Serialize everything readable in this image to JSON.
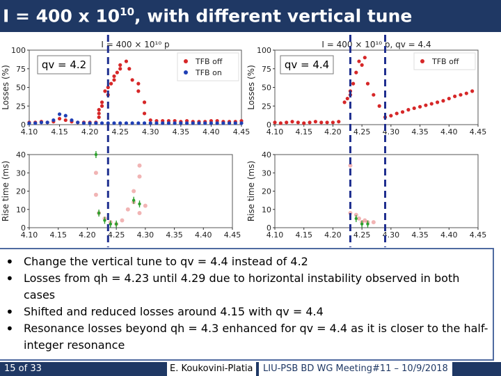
{
  "slide": {
    "title_prefix": "I = 400 x 10",
    "title_exp": "10",
    "title_suffix": ", with different vertical tune"
  },
  "bullets": [
    "Change the vertical tune to qv = 4.4 instead of 4.2",
    "Losses from qh = 4.23 until 4.29 due to horizontal instability observed in both cases",
    "Shifted and reduced losses around 4.15 with qv = 4.4",
    "Resonance losses beyond qh = 4.3 enhanced for qv = 4.4 as it is closer to the half-integer resonance"
  ],
  "footer": {
    "page": "15 of 33",
    "author": "E. Koukovini-Platia",
    "meeting": "LIU-PSB BD WG Meeting#11 – 10/9/2018"
  },
  "colors": {
    "title_bar": "#1f3864",
    "tfb_off": "#d62728",
    "tfb_on": "#1f3fb4",
    "rise_marker": "#2ca02c",
    "marker_line": "#1f2f8f"
  },
  "chart_data": [
    {
      "type": "scatter",
      "panel": "top-left",
      "title": "I = 400 × 10¹⁰ p",
      "annotation": "qv = 4.2",
      "ylabel": "Losses (%)",
      "xlabel": "",
      "xlim": [
        4.1,
        4.45
      ],
      "ylim": [
        0,
        100
      ],
      "xticks": [
        "4.10",
        "4.15",
        "4.20",
        "4.25",
        "4.30",
        "4.35",
        "4.40",
        "4.45"
      ],
      "yticks": [
        "0",
        "25",
        "50",
        "75",
        "100"
      ],
      "legend": "top-right",
      "series": [
        {
          "name": "TFB off",
          "color": "#d62728",
          "x": [
            4.1,
            4.11,
            4.12,
            4.13,
            4.14,
            4.15,
            4.16,
            4.17,
            4.18,
            4.19,
            4.2,
            4.21,
            4.215,
            4.215,
            4.215,
            4.22,
            4.22,
            4.225,
            4.23,
            4.23,
            4.235,
            4.24,
            4.24,
            4.245,
            4.25,
            4.25,
            4.26,
            4.265,
            4.27,
            4.28,
            4.28,
            4.29,
            4.29,
            4.3,
            4.31,
            4.32,
            4.33,
            4.34,
            4.35,
            4.36,
            4.37,
            4.38,
            4.39,
            4.4,
            4.41,
            4.42,
            4.43,
            4.44,
            4.45
          ],
          "y": [
            3,
            3,
            4,
            3,
            4,
            8,
            6,
            4,
            3,
            3,
            3,
            3,
            10,
            15,
            20,
            25,
            30,
            45,
            40,
            50,
            55,
            60,
            65,
            70,
            75,
            80,
            85,
            75,
            60,
            55,
            45,
            30,
            15,
            6,
            5,
            5,
            5,
            5,
            4,
            5,
            4,
            4,
            4,
            5,
            5,
            4,
            4,
            4,
            5
          ]
        },
        {
          "name": "TFB on",
          "color": "#1f3fb4",
          "x": [
            4.1,
            4.11,
            4.12,
            4.13,
            4.14,
            4.15,
            4.16,
            4.17,
            4.18,
            4.19,
            4.2,
            4.21,
            4.22,
            4.23,
            4.24,
            4.25,
            4.26,
            4.27,
            4.28,
            4.29,
            4.3,
            4.31,
            4.32,
            4.33,
            4.34,
            4.35,
            4.36,
            4.37,
            4.38,
            4.39,
            4.4,
            4.41,
            4.42,
            4.43,
            4.44,
            4.45
          ],
          "y": [
            2,
            2,
            3,
            3,
            6,
            14,
            12,
            6,
            3,
            2,
            2,
            2,
            2,
            2,
            2,
            2,
            2,
            2,
            2,
            2,
            2,
            2,
            2,
            2,
            2,
            2,
            2,
            2,
            2,
            2,
            2,
            2,
            2,
            2,
            2,
            2
          ]
        }
      ]
    },
    {
      "type": "scatter",
      "panel": "top-right",
      "title": "I = 400 × 10¹⁰ p, qv = 4.4",
      "annotation": "qv = 4.4",
      "ylabel": "Losses (%)",
      "xlabel": "",
      "xlim": [
        4.1,
        4.45
      ],
      "ylim": [
        0,
        100
      ],
      "xticks": [
        "4.10",
        "4.15",
        "4.20",
        "4.25",
        "4.30",
        "4.35",
        "4.40",
        "4.45"
      ],
      "yticks": [
        "0",
        "25",
        "50",
        "75",
        "100"
      ],
      "legend": "top-right",
      "series": [
        {
          "name": "TFB off",
          "color": "#d62728",
          "x": [
            4.1,
            4.11,
            4.12,
            4.13,
            4.14,
            4.15,
            4.16,
            4.17,
            4.18,
            4.19,
            4.2,
            4.21,
            4.22,
            4.225,
            4.23,
            4.23,
            4.235,
            4.24,
            4.245,
            4.25,
            4.255,
            4.26,
            4.27,
            4.28,
            4.29,
            4.3,
            4.31,
            4.32,
            4.33,
            4.34,
            4.35,
            4.36,
            4.37,
            4.38,
            4.39,
            4.4,
            4.41,
            4.42,
            4.43,
            4.44
          ],
          "y": [
            3,
            2,
            3,
            4,
            3,
            2,
            3,
            4,
            3,
            3,
            3,
            4,
            30,
            35,
            45,
            40,
            55,
            70,
            85,
            80,
            90,
            55,
            40,
            25,
            10,
            12,
            15,
            17,
            20,
            22,
            24,
            26,
            28,
            30,
            32,
            35,
            38,
            40,
            42,
            45
          ]
        }
      ]
    },
    {
      "type": "scatter",
      "panel": "bottom-left",
      "title": "",
      "ylabel": "Rise time (ms)",
      "xlabel": "",
      "xlim": [
        4.1,
        4.45
      ],
      "ylim": [
        0,
        40
      ],
      "xticks": [
        "4.10",
        "4.15",
        "4.20",
        "4.25",
        "4.30",
        "4.35",
        "4.40",
        "4.45"
      ],
      "yticks": [
        "0",
        "10",
        "20",
        "30",
        "40"
      ],
      "series": [
        {
          "name": "TFB off",
          "color": "#d62728",
          "x": [
            4.215,
            4.215,
            4.22,
            4.23,
            4.24,
            4.25,
            4.26,
            4.27,
            4.28,
            4.28,
            4.29,
            4.29,
            4.29,
            4.3
          ],
          "y": [
            30,
            18,
            8,
            5,
            3,
            2,
            4,
            10,
            20,
            14,
            28,
            34,
            8,
            12
          ]
        },
        {
          "name": "TFB on",
          "color": "#2ca02c",
          "x": [
            4.215,
            4.22,
            4.23,
            4.24,
            4.25,
            4.28,
            4.29
          ],
          "y": [
            40,
            8,
            4,
            2,
            2,
            15,
            13
          ]
        }
      ]
    },
    {
      "type": "scatter",
      "panel": "bottom-right",
      "title": "",
      "ylabel": "Rise time (ms)",
      "xlabel": "",
      "xlim": [
        4.1,
        4.45
      ],
      "ylim": [
        0,
        40
      ],
      "xticks": [
        "4.10",
        "4.15",
        "4.20",
        "4.25",
        "4.30",
        "4.35",
        "4.40",
        "4.45"
      ],
      "yticks": [
        "0",
        "10",
        "20",
        "30",
        "40"
      ],
      "series": [
        {
          "name": "TFB off",
          "color": "#d62728",
          "x": [
            4.23,
            4.23,
            4.24,
            4.245,
            4.25,
            4.255,
            4.26,
            4.27
          ],
          "y": [
            34,
            8,
            7,
            5,
            3,
            4,
            3,
            3
          ]
        },
        {
          "name": "TFB on",
          "color": "#2ca02c",
          "x": [
            4.24,
            4.25,
            4.26
          ],
          "y": [
            5,
            2,
            2
          ]
        }
      ]
    }
  ],
  "markers": {
    "left_vline_qh": 4.23,
    "right_vline_qh": 4.23,
    "extra_dash_qh": 4.29
  }
}
